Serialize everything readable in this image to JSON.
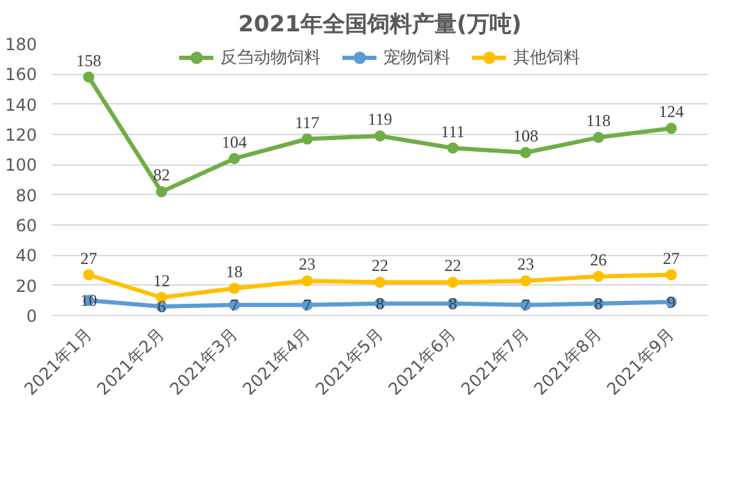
{
  "chart_data": {
    "type": "line",
    "title": "2021年全国饲料产量(万吨)",
    "categories": [
      "2021年1月",
      "2021年2月",
      "2021年3月",
      "2021年4月",
      "2021年5月",
      "2021年6月",
      "2021年7月",
      "2021年8月",
      "2021年9月"
    ],
    "series": [
      {
        "name": "反刍动物饲料",
        "color": "#70ad47",
        "values": [
          158,
          82,
          104,
          117,
          119,
          111,
          108,
          118,
          124
        ]
      },
      {
        "name": "宠物饲料",
        "color": "#5b9bd5",
        "values": [
          10,
          6,
          7,
          7,
          8,
          8,
          7,
          8,
          9
        ]
      },
      {
        "name": "其他饲料",
        "color": "#ffc000",
        "values": [
          27,
          12,
          18,
          23,
          22,
          22,
          23,
          26,
          27
        ]
      }
    ],
    "ylim": [
      0,
      180
    ],
    "yticks": [
      0,
      20,
      40,
      60,
      80,
      100,
      120,
      140,
      160,
      180
    ],
    "grid": "y",
    "legend": "top",
    "marker": "circle",
    "line_style": "solid",
    "data_labels": true
  }
}
